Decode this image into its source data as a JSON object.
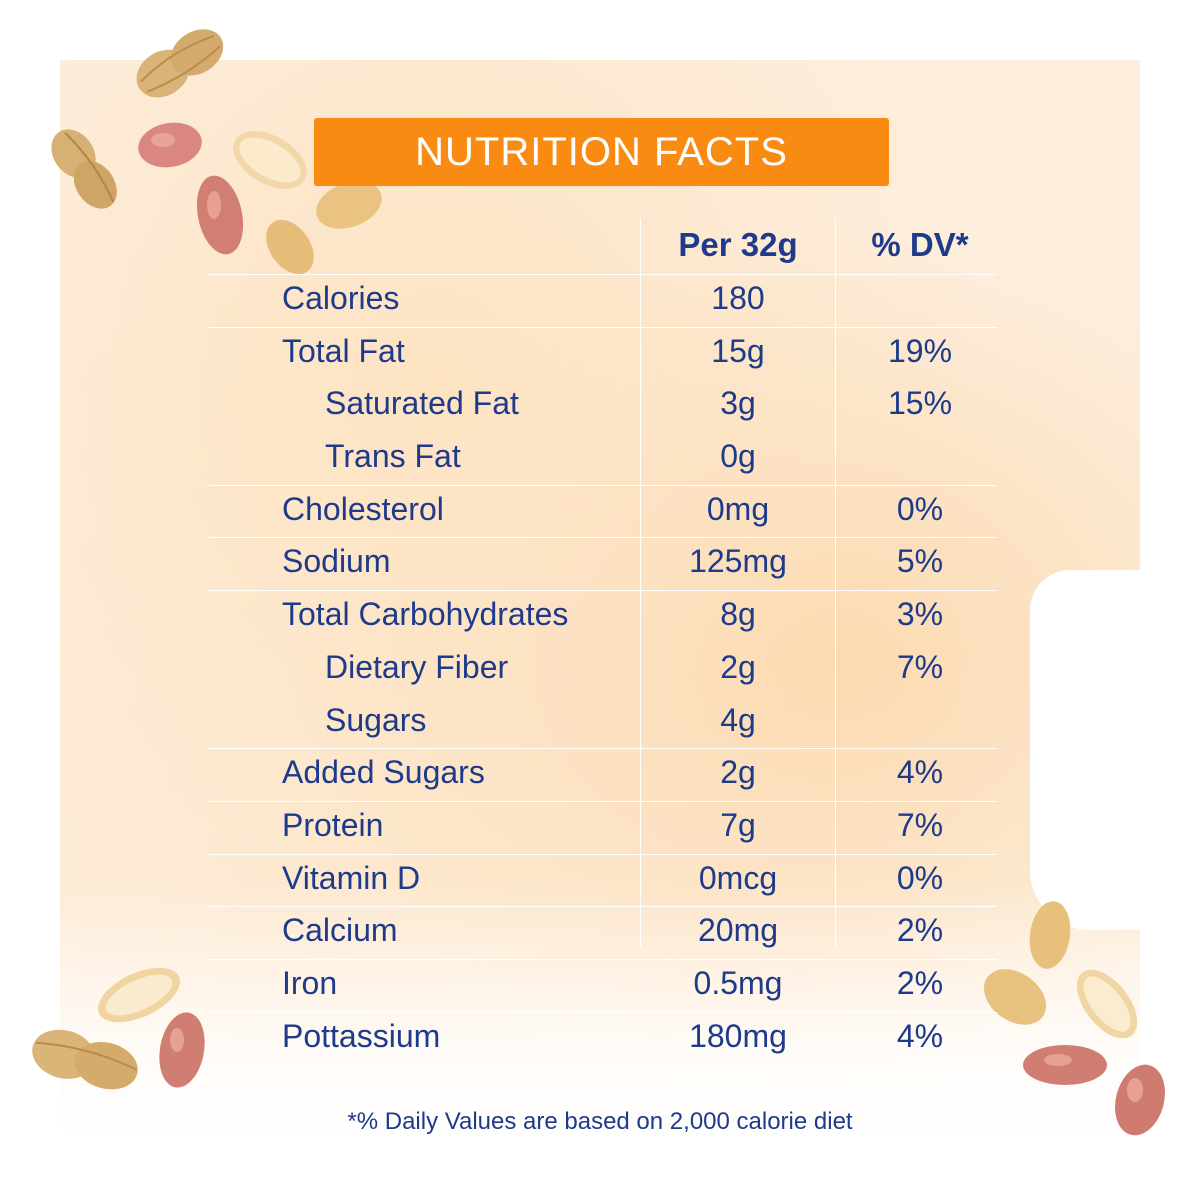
{
  "title": "NUTRITION FACTS",
  "columns": {
    "amount": "Per 32g",
    "dv": "% DV*"
  },
  "rows": [
    {
      "name": "Calories",
      "amount": "180",
      "dv": "",
      "indent": false,
      "sep": true
    },
    {
      "name": "Total Fat",
      "amount": "15g",
      "dv": "19%",
      "indent": false,
      "sep": true
    },
    {
      "name": "Saturated Fat",
      "amount": "3g",
      "dv": "15%",
      "indent": true,
      "sep": false
    },
    {
      "name": "Trans Fat",
      "amount": "0g",
      "dv": "",
      "indent": true,
      "sep": false
    },
    {
      "name": "Cholesterol",
      "amount": "0mg",
      "dv": "0%",
      "indent": false,
      "sep": true
    },
    {
      "name": "Sodium",
      "amount": "125mg",
      "dv": "5%",
      "indent": false,
      "sep": true
    },
    {
      "name": "Total Carbohydrates",
      "amount": "8g",
      "dv": "3%",
      "indent": false,
      "sep": true
    },
    {
      "name": "Dietary Fiber",
      "amount": "2g",
      "dv": "7%",
      "indent": true,
      "sep": false
    },
    {
      "name": "Sugars",
      "amount": "4g",
      "dv": "",
      "indent": true,
      "sep": false
    },
    {
      "name": "Added Sugars",
      "amount": "2g",
      "dv": "4%",
      "indent": false,
      "sep": true
    },
    {
      "name": "Protein",
      "amount": "7g",
      "dv": "7%",
      "indent": false,
      "sep": true
    },
    {
      "name": "Vitamin D",
      "amount": "0mcg",
      "dv": "0%",
      "indent": false,
      "sep": true
    },
    {
      "name": "Calcium",
      "amount": "20mg",
      "dv": "2%",
      "indent": false,
      "sep": true
    },
    {
      "name": "Iron",
      "amount": "0.5mg",
      "dv": "2%",
      "indent": false,
      "sep": true
    },
    {
      "name": "Pottassium",
      "amount": "180mg",
      "dv": "4%",
      "indent": false,
      "sep": true
    }
  ],
  "footnote": "*% Daily Values are based on 2,000 calorie diet",
  "colors": {
    "accent": "#f98a12",
    "text": "#1e3a8a",
    "background": "#fdeedd"
  },
  "decorations": [
    "peanut-shell-icon",
    "peanut-kernel-icon"
  ]
}
